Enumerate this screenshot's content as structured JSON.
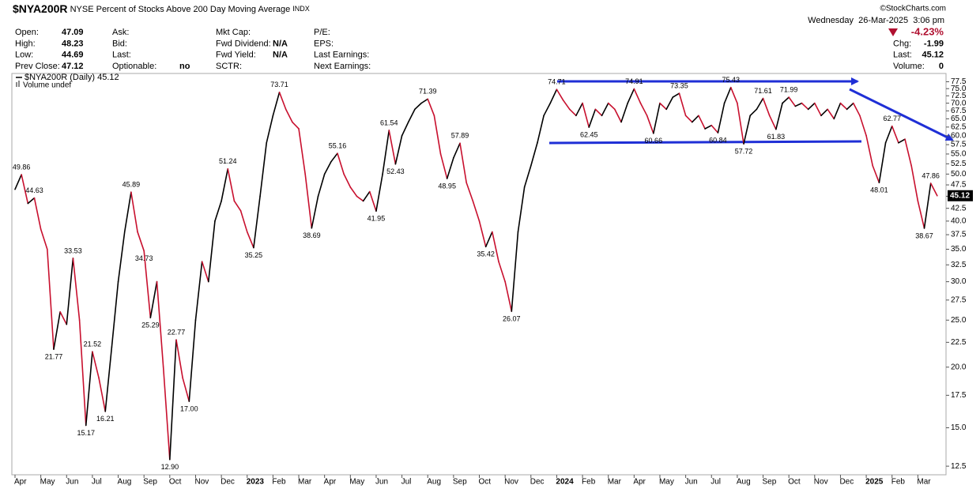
{
  "header": {
    "symbol": "$NYA200R",
    "name": "NYSE Percent of Stocks Above 200 Day Moving Average",
    "exchange": "INDX",
    "copyright": "©StockCharts.com",
    "datetime": "Wednesday  26-Mar-2025  3:06 pm",
    "change_pct": "-4.23%",
    "quote": [
      [
        [
          "Open:",
          "47.09"
        ],
        [
          "High:",
          "48.23"
        ],
        [
          "Low:",
          "44.69"
        ],
        [
          "Prev Close:",
          "47.12"
        ]
      ],
      [
        [
          "Ask:"
        ],
        [
          "Bid:"
        ],
        [
          "Last:"
        ],
        [
          "Optionable:",
          "no"
        ]
      ],
      [
        [
          "Mkt Cap:"
        ],
        [
          "Fwd Dividend:",
          "N/A"
        ],
        [
          "Fwd Yield:",
          "N/A"
        ],
        [
          "SCTR:"
        ]
      ],
      [
        [
          "P/E:"
        ],
        [
          "EPS:"
        ],
        [
          "Last Earnings:"
        ],
        [
          "Next Earnings:"
        ]
      ]
    ],
    "quote_right": [
      [
        "Chg:",
        "-1.99"
      ],
      [
        "Last:",
        "45.12"
      ],
      [
        "Volume:",
        "0"
      ]
    ]
  },
  "chart_data": {
    "type": "line",
    "log_scale": true,
    "grid": false,
    "volume_label": "Volume undef",
    "categories": [
      "Apr",
      null,
      null,
      null,
      "May",
      null,
      null,
      null,
      "Jun",
      null,
      null,
      null,
      "Jul",
      null,
      null,
      null,
      "Aug",
      null,
      null,
      null,
      "Sep",
      null,
      null,
      null,
      "Oct",
      null,
      null,
      null,
      "Nov",
      null,
      null,
      null,
      "Dec",
      null,
      null,
      null,
      "2023",
      null,
      null,
      null,
      "Feb",
      null,
      null,
      null,
      "Mar",
      null,
      null,
      null,
      "Apr",
      null,
      null,
      null,
      "May",
      null,
      null,
      null,
      "Jun",
      null,
      null,
      null,
      "Jul",
      null,
      null,
      null,
      "Aug",
      null,
      null,
      null,
      "Sep",
      null,
      null,
      null,
      "Oct",
      null,
      null,
      null,
      "Nov",
      null,
      null,
      null,
      "Dec",
      null,
      null,
      null,
      "2024",
      null,
      null,
      null,
      "Feb",
      null,
      null,
      null,
      "Mar",
      null,
      null,
      null,
      "Apr",
      null,
      null,
      null,
      "May",
      null,
      null,
      null,
      "Jun",
      null,
      null,
      null,
      "Jul",
      null,
      null,
      null,
      "Aug",
      null,
      null,
      null,
      "Sep",
      null,
      null,
      null,
      "Oct",
      null,
      null,
      null,
      "Nov",
      null,
      null,
      null,
      "Dec",
      null,
      null,
      null,
      "2025",
      null,
      null,
      null,
      "Feb",
      null,
      null,
      null,
      "Mar",
      null,
      null,
      null
    ],
    "series": [
      {
        "name": "$NYA200R (Daily)",
        "color": "#000000",
        "down_color": "#c8102e",
        "values": [
          46.5,
          49.86,
          43.5,
          44.63,
          38.5,
          35,
          21.77,
          26,
          24.5,
          33.53,
          25,
          15.17,
          21.52,
          19,
          16.21,
          22,
          30,
          38,
          45.89,
          38,
          34.73,
          25.29,
          30,
          20,
          12.9,
          22.77,
          19,
          17,
          25,
          33,
          30,
          40,
          44,
          51.24,
          44,
          42,
          38,
          35.25,
          45,
          58,
          66,
          73.71,
          68,
          64,
          62,
          50,
          38.69,
          45,
          50,
          53,
          55.16,
          50,
          47,
          45,
          44,
          46,
          41.95,
          50,
          61.54,
          52.43,
          60,
          64,
          68,
          70,
          71.39,
          66,
          55,
          48.95,
          54,
          57.89,
          48,
          44,
          40,
          35.42,
          38,
          33,
          30,
          26.07,
          38,
          47,
          52,
          58,
          66,
          70,
          74.71,
          71,
          68,
          66,
          70,
          62.45,
          68,
          66,
          70,
          68,
          64,
          70,
          74.91,
          70,
          66,
          60.66,
          70,
          68,
          72,
          73.35,
          66,
          64,
          66,
          62,
          63,
          60.84,
          70,
          75.43,
          70,
          57.72,
          66,
          68,
          71.61,
          66,
          61.83,
          70,
          71.99,
          69,
          70,
          68,
          70,
          66,
          68,
          65,
          70,
          68,
          70,
          66,
          60,
          52,
          48.01,
          58,
          62.77,
          58,
          59,
          52,
          44,
          38.67,
          47.86,
          45.12
        ],
        "value_labels": [
          null,
          "49.86",
          null,
          "44.63",
          null,
          null,
          "21.77",
          null,
          null,
          "33.53",
          null,
          "15.17",
          "21.52",
          null,
          "16.21",
          null,
          null,
          null,
          "45.89",
          null,
          "34.73",
          "25.29",
          null,
          null,
          "12.90",
          "22.77",
          null,
          "17.00",
          null,
          null,
          null,
          null,
          null,
          "51.24",
          null,
          null,
          null,
          "35.25",
          null,
          null,
          null,
          "73.71",
          null,
          null,
          null,
          null,
          "38.69",
          null,
          null,
          null,
          "55.16",
          null,
          null,
          null,
          null,
          null,
          "41.95",
          null,
          "61.54",
          "52.43",
          null,
          null,
          null,
          null,
          "71.39",
          null,
          null,
          "48.95",
          null,
          "57.89",
          null,
          null,
          null,
          "35.42",
          null,
          null,
          null,
          "26.07",
          null,
          null,
          null,
          null,
          null,
          null,
          "74.71",
          null,
          null,
          null,
          null,
          "62.45",
          null,
          null,
          null,
          null,
          null,
          null,
          "74.91",
          null,
          null,
          "60.66",
          null,
          null,
          null,
          "73.35",
          null,
          null,
          null,
          null,
          null,
          "60.84",
          null,
          "75.43",
          null,
          "57.72",
          null,
          null,
          "71.61",
          null,
          "61.83",
          null,
          "71.99",
          null,
          null,
          null,
          null,
          null,
          null,
          null,
          null,
          null,
          null,
          null,
          null,
          null,
          "48.01",
          null,
          "62.77",
          null,
          null,
          null,
          null,
          "38.67",
          "47.86",
          null
        ]
      }
    ],
    "ylim": [
      12,
      80
    ],
    "yticks": [
      12.5,
      {
        "value": 15,
        "label": "15.0"
      },
      17.5,
      {
        "value": 20,
        "label": "20.0"
      },
      22.5,
      {
        "value": 25,
        "label": "25.0"
      },
      27.5,
      {
        "value": 30,
        "label": "30.0"
      },
      32.5,
      {
        "value": 35,
        "label": "35.0"
      },
      37.5,
      {
        "value": 40,
        "label": "40.0"
      },
      42.5,
      {
        "value": 45,
        "label": "45.0"
      },
      47.5,
      {
        "value": 50,
        "label": "50.0"
      },
      52.5,
      {
        "value": 55,
        "label": "55.0"
      },
      57.5,
      {
        "value": 60,
        "label": "60.0"
      },
      62.5,
      {
        "value": 65,
        "label": "65.0"
      },
      67.5,
      {
        "value": 70,
        "label": "70.0"
      },
      72.5,
      {
        "value": 75,
        "label": "75.0"
      },
      77.5
    ]
  }
}
